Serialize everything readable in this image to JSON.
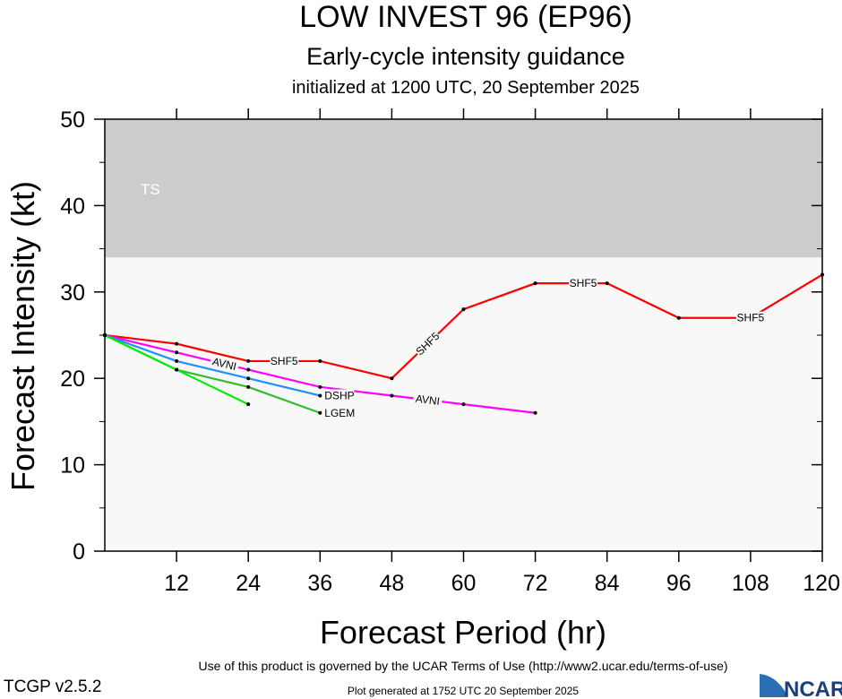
{
  "chart_data": {
    "type": "line",
    "title": "LOW INVEST 96 (EP96)",
    "subtitle": "Early-cycle intensity guidance",
    "subtitle2": "initialized at 1200 UTC, 20 September 2025",
    "xlabel": "Forecast Period (hr)",
    "ylabel": "Forecast Intensity (kt)",
    "xlim": [
      0,
      120
    ],
    "ylim": [
      0,
      50
    ],
    "xticks": [
      12,
      24,
      36,
      48,
      60,
      72,
      84,
      96,
      108,
      120
    ],
    "yticks": [
      0,
      10,
      20,
      30,
      40,
      50
    ],
    "bands": [
      {
        "label": "TS",
        "from": 34,
        "to": 50,
        "color": "#cccccc"
      }
    ],
    "background": "#f8f8f8",
    "series": [
      {
        "name": "SHF5",
        "color": "#ff0000",
        "x": [
          0,
          12,
          24,
          36,
          48,
          60,
          72,
          84,
          96,
          108,
          120
        ],
        "y": [
          25,
          24,
          22,
          22,
          20,
          28,
          31,
          31,
          27,
          27,
          32
        ]
      },
      {
        "name": "AVNI",
        "color": "#ff00ff",
        "x": [
          0,
          12,
          24,
          36,
          48,
          60,
          72
        ],
        "y": [
          25,
          23,
          21,
          19,
          18,
          17,
          16
        ]
      },
      {
        "name": "DSHP",
        "color": "#1e90ff",
        "x": [
          0,
          12,
          24,
          36
        ],
        "y": [
          25,
          22,
          20,
          18
        ]
      },
      {
        "name": "LGEM",
        "color": "#33bb33",
        "x": [
          0,
          12,
          24,
          36
        ],
        "y": [
          25,
          21,
          19,
          16
        ]
      },
      {
        "name": "",
        "color": "#00ee00",
        "x": [
          0,
          12,
          24
        ],
        "y": [
          25,
          21,
          17
        ]
      }
    ]
  },
  "footer": {
    "terms": "Use of this product is governed by the UCAR Terms of Use (http://www2.ucar.edu/terms-of-use)",
    "version": "TCGP v2.5.2",
    "generated": "Plot generated at 1752 UTC   20 September 2025",
    "logo": "NCAR"
  }
}
